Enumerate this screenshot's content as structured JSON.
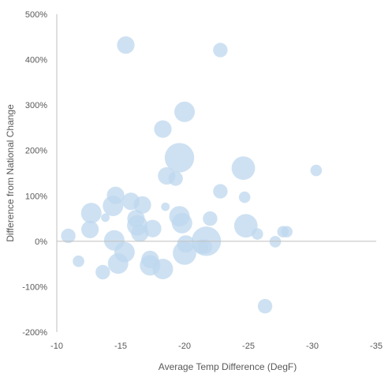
{
  "chart_data": {
    "type": "bubble",
    "xlabel": "Average Temp Difference (DegF)",
    "ylabel": "Difference from National Change",
    "xlim": [
      -10,
      -35
    ],
    "ylim": [
      -200,
      500
    ],
    "x_reversed": true,
    "x_ticks": [
      -10,
      -15,
      -20,
      -25,
      -30,
      -35
    ],
    "y_ticks": [
      500,
      400,
      300,
      200,
      100,
      0,
      -100,
      -200
    ],
    "x_tick_labels": [
      "-10",
      "-15",
      "-20",
      "-25",
      "-30",
      "-35"
    ],
    "y_tick_labels": [
      "500%",
      "400%",
      "300%",
      "200%",
      "100%",
      "0%",
      "-100%",
      "-200%"
    ],
    "bubble_color": "#bdd7ee",
    "axis_color": "#bfbfbf",
    "grid": false,
    "legend": "none",
    "points": [
      {
        "x": -15.4,
        "y": 432,
        "size": 4
      },
      {
        "x": -22.8,
        "y": 421,
        "size": 3
      },
      {
        "x": -20.0,
        "y": 285,
        "size": 5
      },
      {
        "x": -18.3,
        "y": 247,
        "size": 4
      },
      {
        "x": -19.6,
        "y": 184,
        "size": 8
      },
      {
        "x": -24.6,
        "y": 161,
        "size": 6
      },
      {
        "x": -30.3,
        "y": 156,
        "size": 2
      },
      {
        "x": -18.6,
        "y": 144,
        "size": 4
      },
      {
        "x": -19.3,
        "y": 138,
        "size": 3
      },
      {
        "x": -22.8,
        "y": 110,
        "size": 3
      },
      {
        "x": -14.6,
        "y": 101,
        "size": 4
      },
      {
        "x": -24.7,
        "y": 97,
        "size": 2
      },
      {
        "x": -15.8,
        "y": 88,
        "size": 4
      },
      {
        "x": -14.4,
        "y": 78,
        "size": 5
      },
      {
        "x": -16.7,
        "y": 80,
        "size": 4
      },
      {
        "x": -18.5,
        "y": 76,
        "size": 1
      },
      {
        "x": -12.7,
        "y": 62,
        "size": 5
      },
      {
        "x": -19.6,
        "y": 55,
        "size": 5
      },
      {
        "x": -13.8,
        "y": 52,
        "size": 1
      },
      {
        "x": -16.2,
        "y": 50,
        "size": 4
      },
      {
        "x": -22.0,
        "y": 50,
        "size": 3
      },
      {
        "x": -19.8,
        "y": 40,
        "size": 5
      },
      {
        "x": -16.3,
        "y": 35,
        "size": 5
      },
      {
        "x": -24.8,
        "y": 34,
        "size": 6
      },
      {
        "x": -17.5,
        "y": 28,
        "size": 4
      },
      {
        "x": -12.6,
        "y": 26,
        "size": 4
      },
      {
        "x": -16.5,
        "y": 18,
        "size": 4
      },
      {
        "x": -25.7,
        "y": 16,
        "size": 2
      },
      {
        "x": -27.7,
        "y": 21,
        "size": 2
      },
      {
        "x": -28.0,
        "y": 21,
        "size": 2
      },
      {
        "x": -10.9,
        "y": 12,
        "size": 3
      },
      {
        "x": -14.5,
        "y": 2,
        "size": 5
      },
      {
        "x": -21.7,
        "y": 0,
        "size": 8
      },
      {
        "x": -27.1,
        "y": -1,
        "size": 2
      },
      {
        "x": -20.1,
        "y": -6,
        "size": 4
      },
      {
        "x": -21.3,
        "y": -12,
        "size": 3
      },
      {
        "x": -21.6,
        "y": -12,
        "size": 3
      },
      {
        "x": -15.3,
        "y": -24,
        "size": 5
      },
      {
        "x": -20.0,
        "y": -26,
        "size": 6
      },
      {
        "x": -17.3,
        "y": -40,
        "size": 4
      },
      {
        "x": -11.7,
        "y": -44,
        "size": 2
      },
      {
        "x": -14.8,
        "y": -49,
        "size": 5
      },
      {
        "x": -17.3,
        "y": -53,
        "size": 5
      },
      {
        "x": -18.3,
        "y": -61,
        "size": 5
      },
      {
        "x": -13.6,
        "y": -68,
        "size": 3
      },
      {
        "x": -26.3,
        "y": -143,
        "size": 3
      }
    ]
  }
}
